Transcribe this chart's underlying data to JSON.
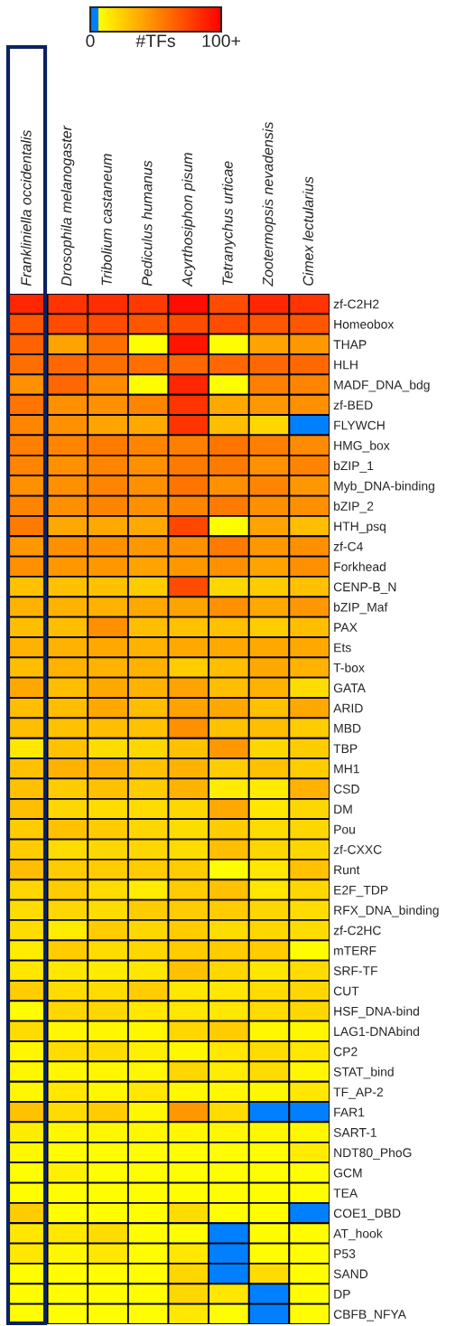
{
  "chart_data": {
    "type": "heatmap",
    "clabel": "#TFs",
    "categories": [
      "Frankliniella occidentalis",
      "Drosophila melanogaster",
      "Tribolium castaneum",
      "Pediculus humanus",
      "Acyrthosiphon pisum",
      "Tetranychus urticae",
      "Zootermopsis nevadensis",
      "Cimex lectularius"
    ],
    "y_categories": [
      "zf-C2H2",
      "Homeobox",
      "THAP",
      "HLH",
      "MADF_DNA_bdg",
      "zf-BED",
      "FLYWCH",
      "HMG_box",
      "bZIP_1",
      "Myb_DNA-binding",
      "bZIP_2",
      "HTH_psq",
      "zf-C4",
      "Forkhead",
      "CENP-B_N",
      "bZIP_Maf",
      "PAX",
      "Ets",
      "T-box",
      "GATA",
      "ARID",
      "MBD",
      "TBP",
      "MH1",
      "CSD",
      "DM",
      "Pou",
      "zf-CXXC",
      "Runt",
      "E2F_TDP",
      "RFX_DNA_binding",
      "zf-C2HC",
      "mTERF",
      "SRF-TF",
      "CUT",
      "HSF_DNA-bind",
      "LAG1-DNAbind",
      "CP2",
      "STAT_bind",
      "TF_AP-2",
      "FAR1",
      "SART-1",
      "NDT80_PhoG",
      "GCM",
      "TEA",
      "COE1_DBD",
      "AT_hook",
      "P53",
      "SAND",
      "DP",
      "CBFB_NFYA"
    ],
    "cells": [
      [
        86,
        81,
        83,
        79,
        95,
        72,
        86,
        81
      ],
      [
        68,
        72,
        72,
        68,
        72,
        72,
        68,
        68
      ],
      [
        64,
        40,
        59,
        7,
        92,
        7,
        40,
        44
      ],
      [
        59,
        62,
        59,
        59,
        62,
        62,
        62,
        62
      ],
      [
        47,
        62,
        49,
        7,
        86,
        7,
        53,
        51
      ],
      [
        57,
        47,
        47,
        51,
        81,
        38,
        44,
        47
      ],
      [
        51,
        47,
        40,
        38,
        81,
        30,
        21,
        0
      ],
      [
        53,
        51,
        55,
        51,
        53,
        57,
        53,
        49
      ],
      [
        51,
        47,
        51,
        47,
        55,
        55,
        47,
        51
      ],
      [
        47,
        47,
        51,
        47,
        57,
        47,
        51,
        44
      ],
      [
        51,
        47,
        51,
        47,
        51,
        55,
        47,
        47
      ],
      [
        55,
        38,
        38,
        38,
        74,
        7,
        40,
        30
      ],
      [
        44,
        47,
        47,
        44,
        47,
        55,
        44,
        47
      ],
      [
        47,
        44,
        44,
        40,
        44,
        47,
        40,
        47
      ],
      [
        29,
        29,
        29,
        25,
        72,
        21,
        25,
        29
      ],
      [
        34,
        34,
        34,
        38,
        40,
        47,
        38,
        44
      ],
      [
        30,
        30,
        47,
        30,
        29,
        29,
        25,
        30
      ],
      [
        34,
        34,
        38,
        34,
        38,
        38,
        38,
        38
      ],
      [
        30,
        34,
        34,
        34,
        25,
        30,
        38,
        34
      ],
      [
        38,
        30,
        38,
        34,
        40,
        30,
        34,
        19
      ],
      [
        30,
        30,
        38,
        30,
        40,
        38,
        29,
        38
      ],
      [
        30,
        29,
        30,
        29,
        47,
        29,
        30,
        25
      ],
      [
        15,
        29,
        19,
        21,
        29,
        44,
        21,
        25
      ],
      [
        29,
        34,
        34,
        29,
        34,
        25,
        29,
        25
      ],
      [
        29,
        25,
        29,
        25,
        34,
        13,
        13,
        34
      ],
      [
        30,
        21,
        19,
        19,
        21,
        38,
        15,
        21
      ],
      [
        25,
        29,
        25,
        21,
        19,
        25,
        19,
        21
      ],
      [
        25,
        19,
        21,
        21,
        19,
        30,
        21,
        21
      ],
      [
        30,
        25,
        25,
        25,
        25,
        7,
        15,
        29
      ],
      [
        21,
        25,
        19,
        13,
        25,
        29,
        15,
        21
      ],
      [
        19,
        21,
        19,
        25,
        25,
        25,
        21,
        19
      ],
      [
        19,
        13,
        25,
        21,
        25,
        19,
        21,
        19
      ],
      [
        13,
        25,
        19,
        21,
        25,
        25,
        25,
        7
      ],
      [
        15,
        15,
        13,
        15,
        29,
        21,
        15,
        19
      ],
      [
        25,
        19,
        19,
        25,
        15,
        15,
        19,
        21
      ],
      [
        7,
        21,
        21,
        15,
        15,
        15,
        19,
        21
      ],
      [
        19,
        9,
        9,
        9,
        21,
        25,
        9,
        9
      ],
      [
        9,
        19,
        19,
        12,
        9,
        15,
        19,
        15
      ],
      [
        9,
        9,
        9,
        9,
        21,
        13,
        19,
        9
      ],
      [
        9,
        15,
        9,
        15,
        9,
        9,
        9,
        15
      ],
      [
        29,
        19,
        25,
        9,
        44,
        19,
        0,
        0
      ],
      [
        13,
        9,
        9,
        9,
        9,
        9,
        9,
        9
      ],
      [
        9,
        7,
        7,
        7,
        7,
        7,
        7,
        13
      ],
      [
        7,
        12,
        7,
        7,
        7,
        7,
        7,
        7
      ],
      [
        7,
        7,
        7,
        7,
        7,
        7,
        7,
        7
      ],
      [
        25,
        7,
        7,
        7,
        19,
        7,
        7,
        0
      ],
      [
        15,
        15,
        19,
        7,
        7,
        0,
        7,
        7
      ],
      [
        15,
        9,
        15,
        7,
        15,
        0,
        7,
        7
      ],
      [
        7,
        7,
        7,
        7,
        21,
        0,
        19,
        7
      ],
      [
        7,
        7,
        7,
        7,
        21,
        15,
        0,
        7
      ],
      [
        7,
        7,
        7,
        7,
        15,
        7,
        0,
        7
      ]
    ],
    "clim": [
      0,
      100
    ],
    "cticks": [
      0,
      {
        "value": 100,
        "label": "100+"
      }
    ]
  }
}
